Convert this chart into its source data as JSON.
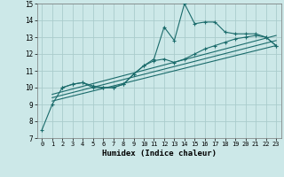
{
  "xlabel": "Humidex (Indice chaleur)",
  "xlim": [
    -0.5,
    23.5
  ],
  "ylim": [
    7,
    15
  ],
  "xticks": [
    0,
    1,
    2,
    3,
    4,
    5,
    6,
    7,
    8,
    9,
    10,
    11,
    12,
    13,
    14,
    15,
    16,
    17,
    18,
    19,
    20,
    21,
    22,
    23
  ],
  "yticks": [
    7,
    8,
    9,
    10,
    11,
    12,
    13,
    14,
    15
  ],
  "bg_color": "#cce8e8",
  "grid_color": "#aacccc",
  "line_color": "#1a6b6b",
  "line1_x": [
    0,
    1,
    2,
    3,
    4,
    5,
    6,
    7,
    8,
    9,
    10,
    11,
    12,
    13,
    14,
    15,
    16,
    17,
    18,
    19,
    20,
    21,
    22,
    23
  ],
  "line1_y": [
    7.5,
    9.0,
    10.0,
    10.2,
    10.3,
    10.0,
    10.0,
    10.0,
    10.2,
    10.8,
    11.3,
    11.7,
    13.6,
    12.8,
    15.0,
    13.8,
    13.9,
    13.9,
    13.3,
    13.2,
    13.2,
    13.2,
    13.0,
    12.5
  ],
  "line2_x": [
    2,
    3,
    4,
    5,
    6,
    7,
    8,
    9,
    10,
    11,
    12,
    13,
    14,
    15,
    16,
    17,
    18,
    19,
    20,
    21,
    22,
    23
  ],
  "line2_y": [
    10.0,
    10.2,
    10.3,
    10.1,
    10.0,
    10.0,
    10.2,
    10.8,
    11.3,
    11.6,
    11.7,
    11.5,
    11.7,
    12.0,
    12.3,
    12.5,
    12.7,
    12.9,
    13.0,
    13.1,
    13.0,
    12.5
  ],
  "line3_x": [
    1,
    23
  ],
  "line3_y": [
    9.2,
    12.5
  ],
  "line4_x": [
    1,
    23
  ],
  "line4_y": [
    9.4,
    12.8
  ],
  "line5_x": [
    1,
    23
  ],
  "line5_y": [
    9.6,
    13.1
  ]
}
